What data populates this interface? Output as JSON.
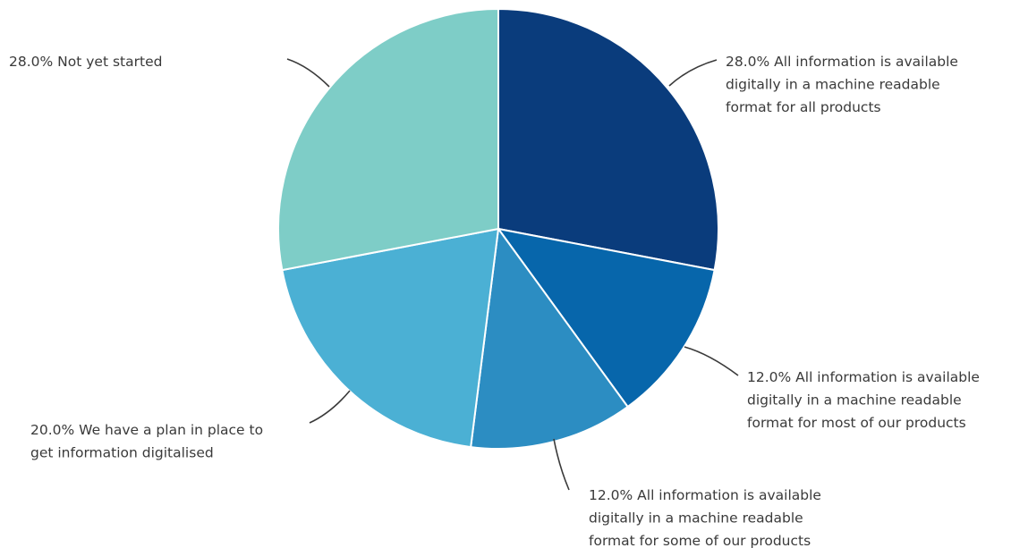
{
  "chart_data": {
    "type": "pie",
    "start_angle_deg": 0,
    "direction": "clockwise",
    "slices": [
      {
        "percent_text": "28.0%",
        "value": 28.0,
        "color": "#0a3c7c",
        "label_lines": [
          "All information is available",
          "digitally in a machine readable",
          "format for all products"
        ]
      },
      {
        "percent_text": "12.0%",
        "value": 12.0,
        "color": "#0766ab",
        "label_lines": [
          "All information is available",
          "digitally in a machine readable",
          "format for most of our products"
        ]
      },
      {
        "percent_text": "12.0%",
        "value": 12.0,
        "color": "#2c8dc2",
        "label_lines": [
          "All information is available",
          "digitally in a machine readable",
          "format for some of our products"
        ]
      },
      {
        "percent_text": "20.0%",
        "value": 20.0,
        "color": "#4bb0d4",
        "label_lines": [
          "We have a plan in place to",
          "get information digitalised"
        ]
      },
      {
        "percent_text": "28.0%",
        "value": 28.0,
        "color": "#7ecdc7",
        "label_lines": [
          "Not yet started"
        ]
      }
    ]
  }
}
